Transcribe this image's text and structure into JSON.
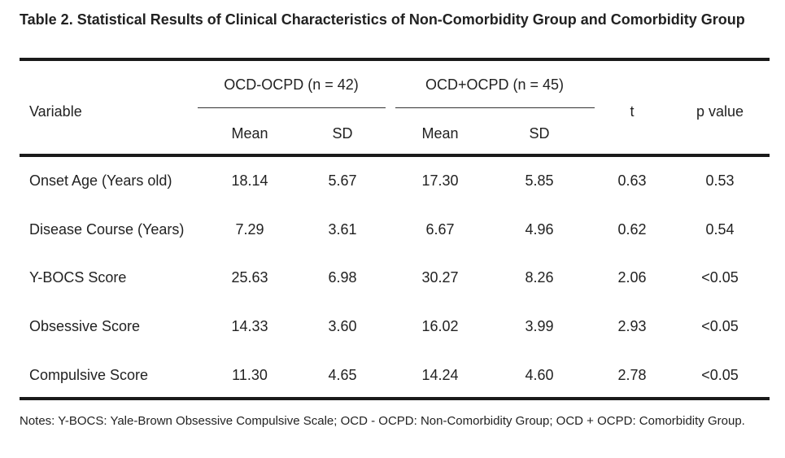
{
  "title": "Table 2. Statistical Results of Clinical Characteristics of Non-Comorbidity Group and Comorbidity Group",
  "table": {
    "header": {
      "variable": "Variable",
      "group1": "OCD-OCPD (n = 42)",
      "group2": "OCD+OCPD (n = 45)",
      "mean1": "Mean",
      "sd1": "SD",
      "mean2": "Mean",
      "sd2": "SD",
      "t": "t",
      "p": "p value"
    },
    "rows": [
      {
        "variable": "Onset Age (Years old)",
        "mean1": "18.14",
        "sd1": "5.67",
        "mean2": "17.30",
        "sd2": "5.85",
        "t": "0.63",
        "p": "0.53"
      },
      {
        "variable": "Disease Course (Years)",
        "mean1": "7.29",
        "sd1": "3.61",
        "mean2": "6.67",
        "sd2": "4.96",
        "t": "0.62",
        "p": "0.54"
      },
      {
        "variable": "Y-BOCS Score",
        "mean1": "25.63",
        "sd1": "6.98",
        "mean2": "30.27",
        "sd2": "8.26",
        "t": "2.06",
        "p": "<0.05"
      },
      {
        "variable": "Obsessive Score",
        "mean1": "14.33",
        "sd1": "3.60",
        "mean2": "16.02",
        "sd2": "3.99",
        "t": "2.93",
        "p": "<0.05"
      },
      {
        "variable": "Compulsive Score",
        "mean1": "11.30",
        "sd1": "4.65",
        "mean2": "14.24",
        "sd2": "4.60",
        "t": "2.78",
        "p": "<0.05"
      }
    ]
  },
  "notes": "Notes: Y-BOCS: Yale-Brown Obsessive Compulsive Scale; OCD - OCPD: Non-Comorbidity Group; OCD + OCPD: Comorbidity Group."
}
